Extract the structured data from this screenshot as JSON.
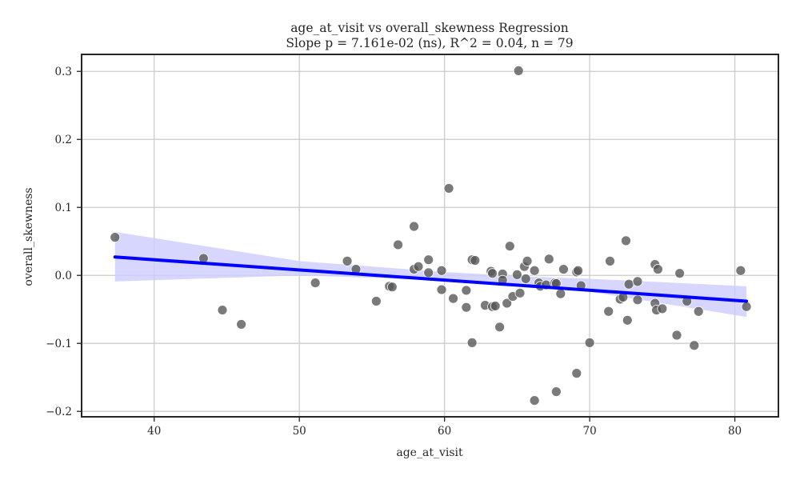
{
  "chart_data": {
    "type": "scatter",
    "title": "age_at_visit vs overall_skewness Regression",
    "subtitle": "Slope p = 7.161e-02 (ns), R^2 = 0.04, n = 79",
    "xlabel": "age_at_visit",
    "ylabel": "overall_skewness",
    "xlim": [
      35,
      83
    ],
    "ylim": [
      -0.208,
      0.325
    ],
    "xticks": [
      40,
      50,
      60,
      70,
      80
    ],
    "yticks": [
      -0.2,
      -0.1,
      0.0,
      0.1,
      0.2,
      0.3
    ],
    "xtick_labels": [
      "40",
      "50",
      "60",
      "70",
      "80"
    ],
    "ytick_labels": [
      "−0.2",
      "−0.1",
      "0.0",
      "0.1",
      "0.2",
      "0.3"
    ],
    "grid": true,
    "colors": {
      "points": "#555555",
      "regression_line": "#0000ff",
      "confidence_band": "#ccccff",
      "grid": "#cccccc",
      "axes": "#262626"
    },
    "regression": {
      "x0": 37.3,
      "y0": 0.027,
      "x1": 80.8,
      "y1": -0.038
    },
    "confidence_band": {
      "x": [
        37.3,
        50,
        60,
        65,
        70,
        80.8
      ],
      "lower": [
        -0.009,
        0.0,
        -0.007,
        -0.013,
        -0.024,
        -0.061
      ],
      "upper": [
        0.064,
        0.021,
        0.005,
        -0.001,
        -0.005,
        -0.016
      ]
    },
    "points": [
      {
        "x": 37.3,
        "y": 0.056
      },
      {
        "x": 43.4,
        "y": 0.025
      },
      {
        "x": 44.7,
        "y": -0.051
      },
      {
        "x": 46.0,
        "y": -0.072
      },
      {
        "x": 51.1,
        "y": -0.011
      },
      {
        "x": 53.3,
        "y": 0.021
      },
      {
        "x": 53.9,
        "y": 0.009
      },
      {
        "x": 55.3,
        "y": -0.038
      },
      {
        "x": 56.2,
        "y": -0.016
      },
      {
        "x": 56.4,
        "y": -0.017
      },
      {
        "x": 56.8,
        "y": 0.045
      },
      {
        "x": 57.9,
        "y": 0.072
      },
      {
        "x": 57.9,
        "y": 0.009
      },
      {
        "x": 58.2,
        "y": 0.013
      },
      {
        "x": 58.9,
        "y": 0.023
      },
      {
        "x": 58.9,
        "y": 0.004
      },
      {
        "x": 59.8,
        "y": 0.007
      },
      {
        "x": 59.8,
        "y": -0.021
      },
      {
        "x": 60.3,
        "y": 0.128
      },
      {
        "x": 60.6,
        "y": -0.034
      },
      {
        "x": 61.5,
        "y": -0.022
      },
      {
        "x": 61.5,
        "y": -0.047
      },
      {
        "x": 61.9,
        "y": 0.023
      },
      {
        "x": 61.9,
        "y": -0.099
      },
      {
        "x": 62.1,
        "y": 0.022
      },
      {
        "x": 62.8,
        "y": -0.044
      },
      {
        "x": 63.2,
        "y": 0.006
      },
      {
        "x": 63.3,
        "y": 0.003
      },
      {
        "x": 63.3,
        "y": -0.046
      },
      {
        "x": 63.5,
        "y": -0.045
      },
      {
        "x": 63.8,
        "y": -0.076
      },
      {
        "x": 64.0,
        "y": 0.002
      },
      {
        "x": 64.0,
        "y": -0.007
      },
      {
        "x": 64.3,
        "y": -0.041
      },
      {
        "x": 64.5,
        "y": 0.043
      },
      {
        "x": 64.7,
        "y": -0.031
      },
      {
        "x": 65.0,
        "y": 0.001
      },
      {
        "x": 65.1,
        "y": 0.301
      },
      {
        "x": 65.2,
        "y": -0.026
      },
      {
        "x": 65.5,
        "y": 0.013
      },
      {
        "x": 65.6,
        "y": -0.005
      },
      {
        "x": 65.7,
        "y": 0.021
      },
      {
        "x": 66.2,
        "y": 0.007
      },
      {
        "x": 66.2,
        "y": -0.184
      },
      {
        "x": 66.5,
        "y": -0.011
      },
      {
        "x": 66.6,
        "y": -0.016
      },
      {
        "x": 67.0,
        "y": -0.014
      },
      {
        "x": 67.2,
        "y": 0.024
      },
      {
        "x": 67.6,
        "y": -0.011
      },
      {
        "x": 67.7,
        "y": -0.012
      },
      {
        "x": 67.7,
        "y": -0.171
      },
      {
        "x": 68.0,
        "y": -0.027
      },
      {
        "x": 68.2,
        "y": 0.009
      },
      {
        "x": 69.1,
        "y": 0.005
      },
      {
        "x": 69.2,
        "y": 0.007
      },
      {
        "x": 69.1,
        "y": -0.144
      },
      {
        "x": 69.4,
        "y": -0.015
      },
      {
        "x": 70.0,
        "y": -0.099
      },
      {
        "x": 71.3,
        "y": -0.053
      },
      {
        "x": 71.4,
        "y": 0.021
      },
      {
        "x": 72.1,
        "y": -0.035
      },
      {
        "x": 72.3,
        "y": -0.032
      },
      {
        "x": 72.5,
        "y": 0.051
      },
      {
        "x": 72.6,
        "y": -0.066
      },
      {
        "x": 72.7,
        "y": -0.013
      },
      {
        "x": 73.3,
        "y": -0.036
      },
      {
        "x": 73.3,
        "y": -0.009
      },
      {
        "x": 74.5,
        "y": 0.016
      },
      {
        "x": 74.5,
        "y": -0.041
      },
      {
        "x": 74.6,
        "y": -0.051
      },
      {
        "x": 74.7,
        "y": 0.009
      },
      {
        "x": 75.0,
        "y": -0.049
      },
      {
        "x": 76.0,
        "y": -0.088
      },
      {
        "x": 76.2,
        "y": 0.003
      },
      {
        "x": 76.7,
        "y": -0.038
      },
      {
        "x": 77.2,
        "y": -0.103
      },
      {
        "x": 77.5,
        "y": -0.053
      },
      {
        "x": 80.4,
        "y": 0.007
      },
      {
        "x": 80.8,
        "y": -0.046
      }
    ]
  }
}
